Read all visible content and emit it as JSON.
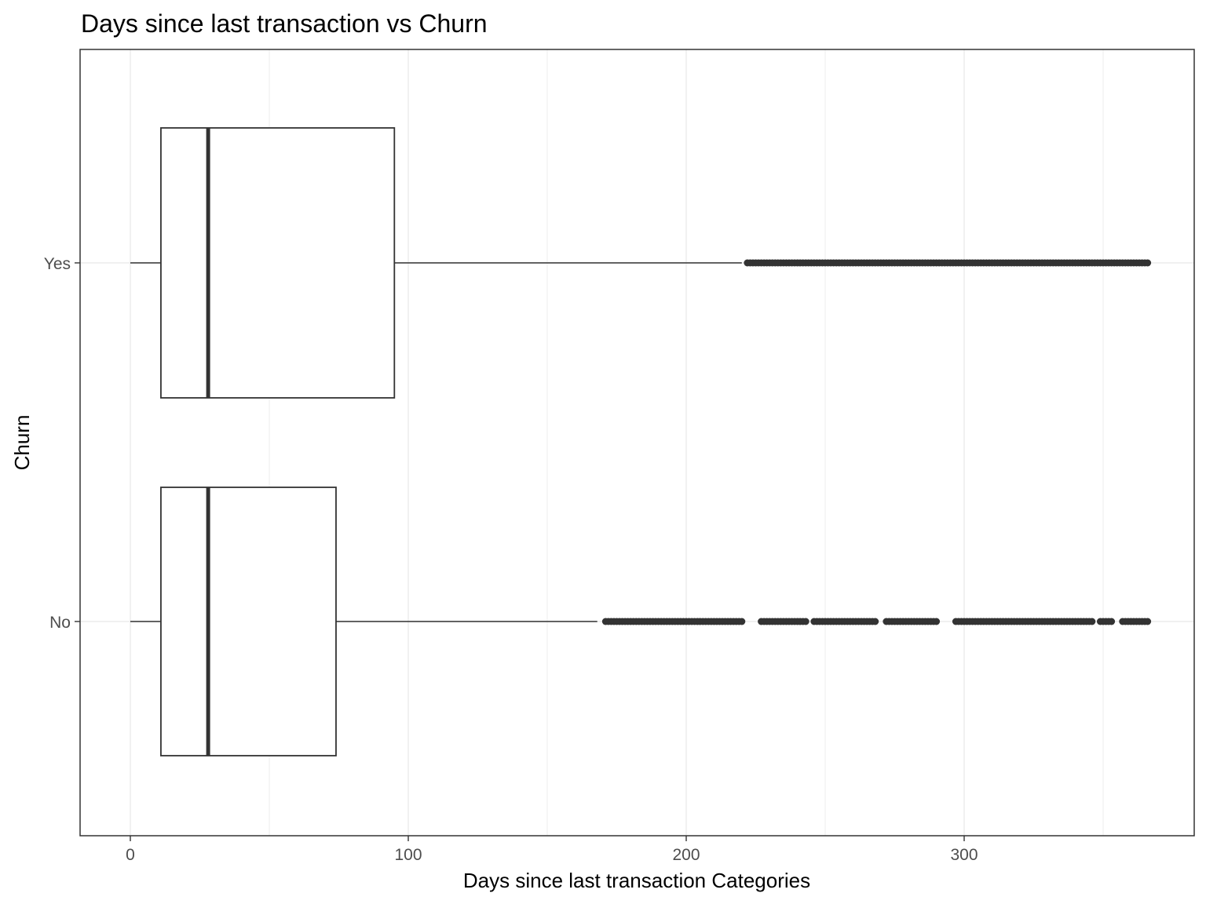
{
  "chart_data": {
    "type": "boxplot",
    "orientation": "horizontal",
    "title": "Days since last transaction vs Churn",
    "xlabel": "Days since last transaction Categories",
    "ylabel": "Churn",
    "xlim": [
      -18,
      385
    ],
    "x_ticks": [
      0,
      100,
      200,
      300
    ],
    "x_tick_labels": [
      "0",
      "100",
      "200",
      "300"
    ],
    "categories": [
      "No",
      "Yes"
    ],
    "grid": true,
    "colors": {
      "box_line": "#333333",
      "grid": "#ebebeb",
      "panel_border": "#333333",
      "background": "#ffffff"
    },
    "boxes": [
      {
        "category": "No",
        "min": 0,
        "q1": 11,
        "median": 28,
        "q3": 74,
        "whisker_high": 168,
        "outlier_ranges": [
          [
            171,
            220
          ],
          [
            227,
            243
          ],
          [
            246,
            268
          ],
          [
            272,
            290
          ],
          [
            297,
            346
          ],
          [
            349,
            353
          ],
          [
            357,
            366
          ]
        ]
      },
      {
        "category": "Yes",
        "min": 0,
        "q1": 11,
        "median": 28,
        "q3": 95,
        "whisker_high": 220,
        "outlier_ranges": [
          [
            222,
            366
          ]
        ]
      }
    ]
  }
}
